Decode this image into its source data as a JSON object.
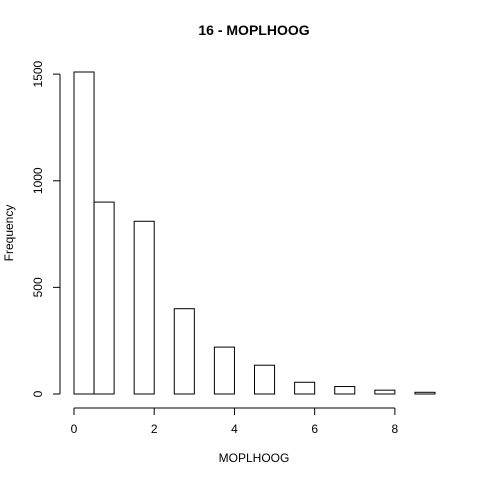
{
  "chart_data": {
    "type": "bar",
    "title": "16 - MOPLHOOG",
    "xlabel": "MOPLHOOG",
    "ylabel": "Frequency",
    "bin_edges": [
      0,
      0.5,
      1,
      1.5,
      2,
      2.5,
      3,
      3.5,
      4,
      4.5,
      5,
      5.5,
      6,
      6.5,
      7,
      7.5,
      8,
      8.5,
      9
    ],
    "values": [
      1510,
      900,
      0,
      810,
      0,
      400,
      0,
      220,
      0,
      135,
      0,
      55,
      0,
      35,
      0,
      18,
      0,
      8
    ],
    "xlim": [
      0,
      9
    ],
    "ylim": [
      0,
      1510
    ],
    "x_ticks": [
      0,
      2,
      4,
      6,
      8
    ],
    "y_ticks": [
      0,
      500,
      1000,
      1500
    ],
    "grid": false
  }
}
